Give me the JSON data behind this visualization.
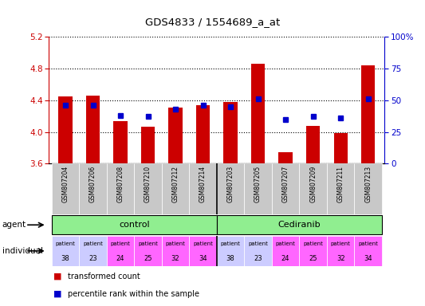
{
  "title": "GDS4833 / 1554689_a_at",
  "samples": [
    "GSM807204",
    "GSM807206",
    "GSM807208",
    "GSM807210",
    "GSM807212",
    "GSM807214",
    "GSM807203",
    "GSM807205",
    "GSM807207",
    "GSM807209",
    "GSM807211",
    "GSM807213"
  ],
  "bar_values": [
    4.45,
    4.46,
    4.14,
    4.07,
    4.31,
    4.34,
    4.38,
    4.86,
    3.74,
    4.08,
    3.99,
    4.84
  ],
  "percentile_values": [
    46,
    46,
    38,
    37,
    43,
    46,
    45,
    51,
    35,
    37,
    36,
    51
  ],
  "ylim_left": [
    3.6,
    5.2
  ],
  "ylim_right": [
    0,
    100
  ],
  "yticks_left": [
    3.6,
    4.0,
    4.4,
    4.8,
    5.2
  ],
  "yticks_right": [
    0,
    25,
    50,
    75,
    100
  ],
  "bar_color": "#cc0000",
  "percentile_color": "#0000cc",
  "bar_bottom": 3.6,
  "tick_label_color_left": "#cc0000",
  "tick_label_color_right": "#0000cc",
  "xticklabel_bg": "#c8c8c8",
  "control_bg": "#90ee90",
  "cediranib_bg": "#90ee90",
  "patient_bg": [
    "#ccccff",
    "#ccccff",
    "#ff66ff",
    "#ff66ff",
    "#ff66ff",
    "#ff66ff",
    "#ccccff",
    "#ccccff",
    "#ff66ff",
    "#ff66ff",
    "#ff66ff",
    "#ff66ff"
  ],
  "patient_numbers": [
    38,
    23,
    24,
    25,
    32,
    34,
    38,
    23,
    24,
    25,
    32,
    34
  ],
  "right_axis_top_label": "100%"
}
